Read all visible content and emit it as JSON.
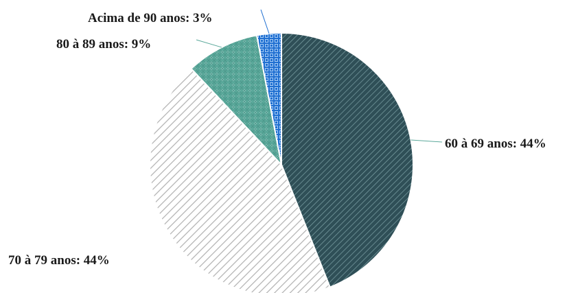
{
  "chart_data": {
    "type": "pie",
    "title": "",
    "slices": [
      {
        "label": "60 à 69 anos: 44%",
        "category": "60 à 69 anos",
        "value": 44,
        "color": "#2f4f57",
        "pattern": "diagonal-stripes-dark"
      },
      {
        "label": "70 à 79 anos: 44%",
        "category": "70 à 79 anos",
        "value": 44,
        "color": "#bfbfbf",
        "pattern": "diagonal-stripes-light"
      },
      {
        "label": "80 à 89 anos: 9%",
        "category": "80 à 89 anos",
        "value": 9,
        "color": "#5aa89a",
        "pattern": "dots-teal"
      },
      {
        "label": "Acima de 90 anos: 3%",
        "category": "Acima de 90 anos",
        "value": 3,
        "color": "#1f6fd1",
        "pattern": "grid-blue"
      }
    ],
    "start_angle": "12 o'clock",
    "direction": "clockwise",
    "legend": "none (data labels with leader lines)"
  }
}
